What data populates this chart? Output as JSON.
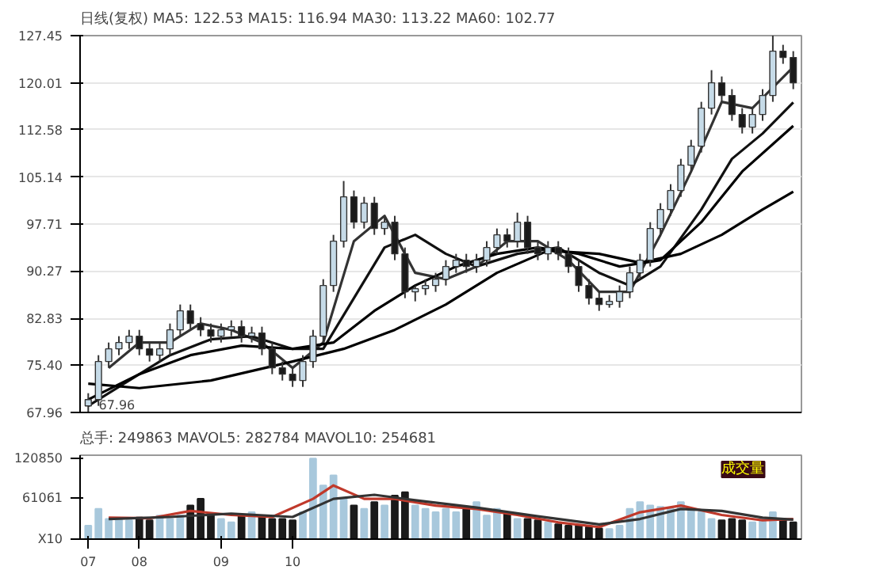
{
  "chart_data": [
    {
      "type": "candlestick",
      "title": "日线(复权) MA5: 122.53 MA15: 116.94 MA30: 113.22 MA60: 102.77",
      "categories": [
        null,
        null,
        null,
        null,
        null,
        null,
        null,
        null,
        null,
        null,
        null,
        null,
        null,
        null,
        null,
        null,
        null,
        null,
        null,
        null,
        null,
        null,
        null,
        null,
        null,
        null,
        null,
        null,
        null,
        null,
        null,
        null,
        null,
        null,
        null,
        null,
        null,
        null,
        null,
        null,
        null,
        null,
        null,
        null,
        null,
        null,
        null,
        null,
        null,
        null,
        null,
        null,
        null,
        null,
        null,
        null,
        null,
        null,
        null,
        null,
        null,
        null,
        null,
        null,
        null,
        null,
        null,
        null,
        null,
        null
      ],
      "ohlc": [
        [
          69,
          71,
          67.96,
          70
        ],
        [
          70,
          77,
          69,
          76
        ],
        [
          76,
          79,
          75,
          78
        ],
        [
          78,
          80,
          77,
          79
        ],
        [
          79,
          81,
          78,
          80
        ],
        [
          80,
          81,
          77,
          78
        ],
        [
          78,
          79,
          76,
          77
        ],
        [
          77,
          79,
          76,
          78
        ],
        [
          78,
          82,
          77,
          81
        ],
        [
          81,
          85,
          80,
          84
        ],
        [
          84,
          85,
          81,
          82
        ],
        [
          82,
          83,
          80,
          81
        ],
        [
          81,
          82,
          79,
          80
        ],
        [
          80,
          82,
          79,
          81
        ],
        [
          81,
          82.5,
          80,
          81.5
        ],
        [
          81.5,
          82.5,
          79,
          80
        ],
        [
          80,
          81.5,
          79,
          80.5
        ],
        [
          80.5,
          81.5,
          77,
          78
        ],
        [
          78,
          79,
          74,
          75
        ],
        [
          75,
          76,
          73,
          74
        ],
        [
          74,
          75,
          72,
          73
        ],
        [
          73,
          77,
          72,
          76
        ],
        [
          76,
          81,
          75,
          80
        ],
        [
          80,
          89,
          79,
          88
        ],
        [
          88,
          96,
          87,
          95
        ],
        [
          95,
          104.5,
          94,
          102
        ],
        [
          102,
          103,
          97,
          98
        ],
        [
          98,
          102,
          97,
          101
        ],
        [
          101,
          102,
          96,
          97
        ],
        [
          97,
          99,
          96,
          98
        ],
        [
          98,
          99,
          92,
          93
        ],
        [
          93,
          94,
          86,
          87
        ],
        [
          87,
          88,
          85.5,
          87.5
        ],
        [
          87.5,
          89,
          86.5,
          88
        ],
        [
          88,
          90,
          87,
          89
        ],
        [
          89,
          92,
          88,
          91
        ],
        [
          91,
          93,
          90,
          92
        ],
        [
          92,
          93,
          90,
          91
        ],
        [
          91,
          93,
          90,
          92
        ],
        [
          92,
          95,
          91,
          94
        ],
        [
          94,
          97,
          93,
          96
        ],
        [
          96,
          97,
          94,
          95
        ],
        [
          95,
          99.5,
          94,
          98
        ],
        [
          98,
          99,
          93,
          94
        ],
        [
          94,
          95,
          92,
          93
        ],
        [
          93,
          95,
          92,
          94
        ],
        [
          94,
          95,
          92,
          93
        ],
        [
          93,
          94,
          90,
          91
        ],
        [
          91,
          92,
          87,
          88
        ],
        [
          88,
          89,
          85,
          86
        ],
        [
          86,
          87,
          84,
          85
        ],
        [
          85,
          86.5,
          84.5,
          85.5
        ],
        [
          85.5,
          88,
          84.5,
          87
        ],
        [
          87,
          91,
          86,
          90
        ],
        [
          90,
          93,
          89,
          92
        ],
        [
          92,
          98,
          91,
          97
        ],
        [
          97,
          101,
          96,
          100
        ],
        [
          100,
          104,
          99,
          103
        ],
        [
          103,
          108,
          102,
          107
        ],
        [
          107,
          111,
          106,
          110
        ],
        [
          110,
          117,
          109,
          116
        ],
        [
          116,
          122,
          115,
          120
        ],
        [
          120,
          121,
          117,
          118
        ],
        [
          118,
          119,
          114,
          115
        ],
        [
          115,
          116,
          112,
          113
        ],
        [
          113,
          116,
          112,
          115
        ],
        [
          115,
          119,
          114,
          118
        ],
        [
          118,
          127.45,
          117,
          125
        ],
        [
          125,
          126,
          123,
          124
        ],
        [
          124,
          125,
          119,
          120
        ]
      ],
      "colors": [
        "#c6dbe8",
        "#c6dbe8",
        "#c6dbe8",
        "#c6dbe8",
        "#c6dbe8",
        "#1a1a1a",
        "#1a1a1a",
        "#c6dbe8",
        "#c6dbe8",
        "#c6dbe8",
        "#1a1a1a",
        "#1a1a1a",
        "#1a1a1a",
        "#c6dbe8",
        "#c6dbe8",
        "#1a1a1a",
        "#c6dbe8",
        "#1a1a1a",
        "#1a1a1a",
        "#1a1a1a",
        "#1a1a1a",
        "#c6dbe8",
        "#c6dbe8",
        "#c6dbe8",
        "#c6dbe8",
        "#c6dbe8",
        "#1a1a1a",
        "#c6dbe8",
        "#1a1a1a",
        "#c6dbe8",
        "#1a1a1a",
        "#1a1a1a",
        "#c6dbe8",
        "#c6dbe8",
        "#c6dbe8",
        "#c6dbe8",
        "#c6dbe8",
        "#1a1a1a",
        "#c6dbe8",
        "#c6dbe8",
        "#c6dbe8",
        "#1a1a1a",
        "#c6dbe8",
        "#1a1a1a",
        "#1a1a1a",
        "#c6dbe8",
        "#1a1a1a",
        "#1a1a1a",
        "#1a1a1a",
        "#1a1a1a",
        "#1a1a1a",
        "#c6dbe8",
        "#c6dbe8",
        "#c6dbe8",
        "#c6dbe8",
        "#c6dbe8",
        "#c6dbe8",
        "#c6dbe8",
        "#c6dbe8",
        "#c6dbe8",
        "#c6dbe8",
        "#c6dbe8",
        "#1a1a1a",
        "#1a1a1a",
        "#1a1a1a",
        "#c6dbe8",
        "#c6dbe8",
        "#c6dbe8",
        "#1a1a1a",
        "#1a1a1a"
      ],
      "series": [
        {
          "type": "line",
          "color": "#333333",
          "values": [
            null,
            null,
            75,
            null,
            null,
            79,
            null,
            null,
            79,
            null,
            null,
            82,
            null,
            null,
            81,
            null,
            null,
            79,
            null,
            null,
            75,
            null,
            null,
            79,
            null,
            null,
            95,
            null,
            null,
            99,
            null,
            null,
            90,
            null,
            null,
            89,
            null,
            null,
            91,
            null,
            null,
            95,
            null,
            null,
            95,
            null,
            null,
            92,
            null,
            null,
            87,
            null,
            null,
            87,
            null,
            null,
            96,
            null,
            null,
            106,
            null,
            null,
            117,
            null,
            null,
            116,
            null,
            null,
            null,
            122.5
          ]
        },
        {
          "type": "line",
          "color": "#111111",
          "values": [
            69,
            null,
            null,
            null,
            73,
            null,
            null,
            null,
            77,
            null,
            null,
            null,
            79.5,
            null,
            null,
            null,
            80,
            null,
            null,
            null,
            78,
            null,
            null,
            78,
            null,
            null,
            86,
            null,
            null,
            94,
            null,
            null,
            96,
            null,
            null,
            93,
            null,
            null,
            91,
            null,
            null,
            null,
            93,
            null,
            null,
            null,
            94,
            null,
            null,
            null,
            90,
            null,
            null,
            88,
            null,
            null,
            91,
            null,
            null,
            null,
            100,
            null,
            null,
            108,
            null,
            null,
            112,
            null,
            null,
            116.9
          ]
        },
        {
          "type": "line",
          "color": "#000000",
          "values": [
            70,
            null,
            null,
            null,
            null,
            74,
            null,
            null,
            null,
            null,
            77,
            null,
            null,
            null,
            null,
            78.5,
            null,
            null,
            null,
            null,
            78,
            null,
            null,
            null,
            79,
            null,
            null,
            null,
            84,
            null,
            null,
            null,
            88,
            null,
            null,
            null,
            91,
            null,
            null,
            null,
            93,
            null,
            null,
            null,
            94,
            null,
            null,
            null,
            93,
            null,
            null,
            null,
            91,
            null,
            null,
            null,
            92,
            null,
            null,
            null,
            98,
            null,
            null,
            null,
            106,
            null,
            null,
            null,
            null,
            113.2
          ]
        },
        {
          "type": "line",
          "color": "#000000",
          "values": [
            72.5,
            null,
            null,
            null,
            null,
            71.8,
            null,
            null,
            null,
            null,
            null,
            null,
            73,
            null,
            null,
            null,
            null,
            null,
            null,
            null,
            76,
            null,
            null,
            null,
            null,
            78,
            null,
            null,
            null,
            null,
            81,
            null,
            null,
            null,
            null,
            85,
            null,
            null,
            null,
            null,
            90,
            null,
            null,
            null,
            null,
            93.5,
            null,
            null,
            null,
            null,
            93,
            null,
            null,
            null,
            91.6,
            null,
            null,
            null,
            93,
            null,
            null,
            null,
            96,
            null,
            null,
            null,
            100,
            null,
            null,
            102.8
          ]
        }
      ],
      "ylim": [
        67.96,
        127.45
      ],
      "yticks": [
        67.96,
        {
          "value": 75.4,
          "label": "75.40"
        },
        82.83,
        90.27,
        97.71,
        105.14,
        112.58,
        120.01,
        127.45
      ],
      "grid": "y",
      "tick_labels": "y",
      "annotations": [
        "67.96"
      ]
    },
    {
      "type": "bar",
      "title": "总手: 249863 MAVOL5: 282784 MAVOL10: 254681",
      "categories": [
        "07",
        null,
        null,
        null,
        null,
        "08",
        null,
        null,
        null,
        null,
        null,
        null,
        null,
        "09",
        null,
        null,
        null,
        null,
        null,
        null,
        "10",
        null,
        null,
        null,
        null,
        null,
        null,
        null,
        null,
        null,
        null,
        null,
        null,
        null,
        null,
        null,
        null,
        null,
        null,
        null,
        null,
        null,
        null,
        null,
        null,
        null,
        null,
        null,
        null,
        null,
        null,
        null,
        null,
        null,
        null,
        null,
        null,
        null,
        null,
        null,
        null,
        null,
        null,
        null,
        null,
        null,
        null,
        null,
        null,
        null
      ],
      "values": [
        20000,
        45000,
        30000,
        30000,
        28000,
        32000,
        28000,
        35000,
        30000,
        35000,
        50000,
        60000,
        35000,
        30000,
        25000,
        35000,
        40000,
        35000,
        30000,
        30000,
        28000,
        40000,
        120000,
        80000,
        95000,
        60000,
        50000,
        45000,
        55000,
        50000,
        65000,
        70000,
        50000,
        45000,
        40000,
        45000,
        40000,
        45000,
        55000,
        35000,
        45000,
        38000,
        30000,
        30000,
        28000,
        25000,
        22000,
        20000,
        20000,
        18000,
        16000,
        15000,
        20000,
        45000,
        55000,
        50000,
        48000,
        45000,
        55000,
        45000,
        40000,
        30000,
        28000,
        30000,
        28000,
        25000,
        30000,
        40000,
        30000,
        25000
      ],
      "colors": [
        "#a8c8dc",
        "#a8c8dc",
        "#a8c8dc",
        "#a8c8dc",
        "#a8c8dc",
        "#1a1a1a",
        "#1a1a1a",
        "#a8c8dc",
        "#a8c8dc",
        "#a8c8dc",
        "#1a1a1a",
        "#1a1a1a",
        "#1a1a1a",
        "#a8c8dc",
        "#a8c8dc",
        "#1a1a1a",
        "#a8c8dc",
        "#1a1a1a",
        "#1a1a1a",
        "#1a1a1a",
        "#1a1a1a",
        "#a8c8dc",
        "#a8c8dc",
        "#a8c8dc",
        "#a8c8dc",
        "#a8c8dc",
        "#1a1a1a",
        "#a8c8dc",
        "#1a1a1a",
        "#a8c8dc",
        "#1a1a1a",
        "#1a1a1a",
        "#a8c8dc",
        "#a8c8dc",
        "#a8c8dc",
        "#a8c8dc",
        "#a8c8dc",
        "#1a1a1a",
        "#a8c8dc",
        "#a8c8dc",
        "#a8c8dc",
        "#1a1a1a",
        "#a8c8dc",
        "#1a1a1a",
        "#1a1a1a",
        "#a8c8dc",
        "#1a1a1a",
        "#1a1a1a",
        "#1a1a1a",
        "#1a1a1a",
        "#1a1a1a",
        "#a8c8dc",
        "#a8c8dc",
        "#a8c8dc",
        "#a8c8dc",
        "#a8c8dc",
        "#a8c8dc",
        "#a8c8dc",
        "#a8c8dc",
        "#a8c8dc",
        "#a8c8dc",
        "#a8c8dc",
        "#1a1a1a",
        "#1a1a1a",
        "#1a1a1a",
        "#a8c8dc",
        "#a8c8dc",
        "#a8c8dc",
        "#1a1a1a",
        "#1a1a1a"
      ],
      "series": [
        {
          "type": "line",
          "color": "#c0392b",
          "values": [
            null,
            null,
            32000,
            null,
            null,
            null,
            31000,
            null,
            null,
            null,
            42000,
            null,
            null,
            null,
            36000,
            null,
            null,
            null,
            33000,
            null,
            null,
            null,
            60000,
            null,
            80000,
            null,
            null,
            60000,
            null,
            null,
            60000,
            null,
            null,
            null,
            50000,
            null,
            null,
            null,
            45000,
            null,
            null,
            null,
            36000,
            null,
            null,
            null,
            25000,
            null,
            null,
            null,
            18000,
            null,
            null,
            null,
            40000,
            null,
            null,
            null,
            50000,
            null,
            null,
            null,
            36000,
            null,
            null,
            null,
            28000,
            null,
            null,
            30000
          ]
        },
        {
          "type": "line",
          "color": "#333333",
          "values": [
            null,
            null,
            30000,
            null,
            null,
            null,
            null,
            null,
            33000,
            null,
            null,
            null,
            null,
            null,
            38000,
            null,
            null,
            null,
            null,
            null,
            33000,
            null,
            null,
            null,
            60000,
            null,
            null,
            null,
            66000,
            null,
            null,
            null,
            58000,
            null,
            null,
            null,
            null,
            null,
            47000,
            null,
            null,
            null,
            null,
            null,
            34000,
            null,
            null,
            null,
            null,
            null,
            22000,
            null,
            null,
            null,
            30000,
            null,
            null,
            null,
            45000,
            null,
            null,
            null,
            42000,
            null,
            null,
            null,
            32000,
            null,
            null,
            29000
          ]
        }
      ],
      "ylim": [
        0,
        125000
      ],
      "yticks": [
        {
          "value": 0,
          "label": "X10"
        },
        61061,
        120850
      ],
      "annotations": [
        "成交量"
      ]
    }
  ]
}
